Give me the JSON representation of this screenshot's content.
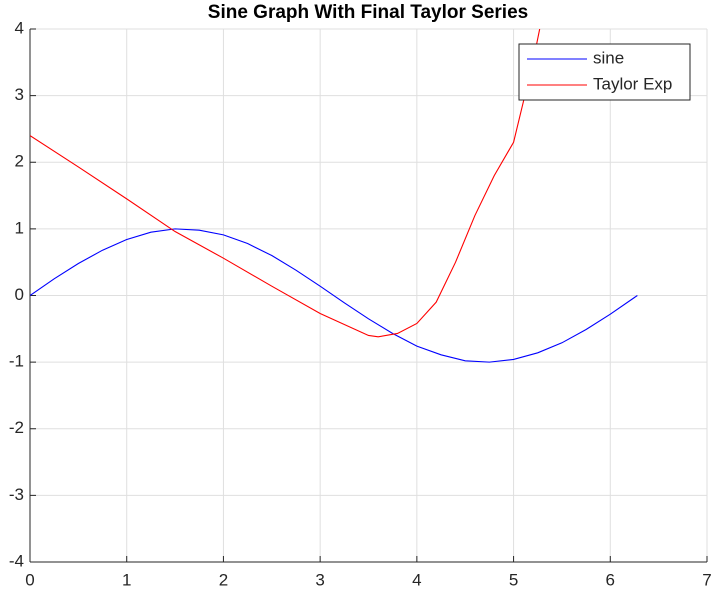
{
  "chart_data": {
    "type": "line",
    "title": "Sine Graph With Final Taylor Series",
    "xlim": [
      0,
      7
    ],
    "xticks": [
      0,
      1,
      2,
      3,
      4,
      5,
      6,
      7
    ],
    "ylim": [
      -4,
      4
    ],
    "yticks": [
      -4,
      -3,
      -2,
      -1,
      0,
      1,
      2,
      3,
      4
    ],
    "grid": true,
    "legend": "top-right",
    "series": [
      {
        "name": "sine",
        "color": "#0000ff",
        "x": [
          0,
          0.25,
          0.5,
          0.75,
          1,
          1.25,
          1.5,
          1.75,
          2,
          2.25,
          2.5,
          2.75,
          3,
          3.25,
          3.5,
          3.75,
          4,
          4.25,
          4.5,
          4.75,
          5,
          5.25,
          5.5,
          5.75,
          6,
          6.25,
          6.28
        ],
        "values": [
          0,
          0.25,
          0.48,
          0.68,
          0.84,
          0.95,
          1.0,
          0.98,
          0.91,
          0.78,
          0.6,
          0.38,
          0.14,
          -0.11,
          -0.35,
          -0.57,
          -0.76,
          -0.89,
          -0.98,
          -1.0,
          -0.96,
          -0.86,
          -0.71,
          -0.51,
          -0.28,
          -0.03,
          0
        ]
      },
      {
        "name": "Taylor Exp",
        "color": "#ff0000",
        "x": [
          0,
          0.5,
          1,
          1.5,
          2,
          2.5,
          3,
          3.5,
          3.6,
          3.8,
          4,
          4.2,
          4.4,
          4.6,
          4.8,
          5,
          5.1,
          5.2,
          5.27
        ],
        "values": [
          2.4,
          1.93,
          1.45,
          0.96,
          0.56,
          0.14,
          -0.27,
          -0.6,
          -0.62,
          -0.57,
          -0.42,
          -0.1,
          0.5,
          1.2,
          1.8,
          2.3,
          2.9,
          3.5,
          4
        ]
      }
    ]
  }
}
